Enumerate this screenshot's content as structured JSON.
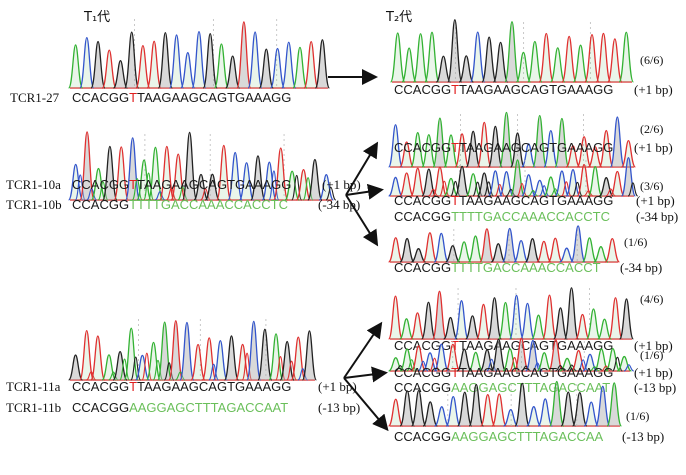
{
  "colors": {
    "A": "#33b233",
    "C": "#3355cc",
    "G": "#222222",
    "T": "#e03030",
    "seq_black": "#1a1a1a",
    "insert_red": "#e02020",
    "deletion_green": "#6abf5a",
    "baseline_red": "#e05050",
    "baseline_black": "#222222"
  },
  "headers": {
    "t1": "T₁代",
    "t2": "T₂代"
  },
  "t1_samples": [
    {
      "id": "tcr1-27",
      "chrom_count": 1,
      "lines": [
        {
          "label": "TCR1-27",
          "prefix": "CCACGG",
          "insert": "T",
          "rest": "TAAGAAGCAGTGAAAGG",
          "restColor": "black",
          "indel": ""
        }
      ]
    },
    {
      "id": "tcr1-10",
      "chrom_count": 1,
      "lines": [
        {
          "label": "TCR1-10a",
          "prefix": "CCACGG",
          "insert": "T",
          "rest": "TAAGAAGCAGTGAAAGG",
          "restColor": "black",
          "indel": "(+1 bp)"
        },
        {
          "label": "TCR1-10b",
          "prefix": "CCACGG",
          "insert": "",
          "rest": "TTTTGACCAAACCACCTC",
          "restColor": "green",
          "indel": "(-34 bp)"
        }
      ]
    },
    {
      "id": "tcr1-11",
      "chrom_count": 1,
      "lines": [
        {
          "label": "TCR1-11a",
          "prefix": "CCACGG",
          "insert": "T",
          "rest": "TAAGAAGCAGTGAAAGG",
          "restColor": "black",
          "indel": "(+1 bp)"
        },
        {
          "label": "TCR1-11b",
          "prefix": "CCACGG",
          "insert": "",
          "rest": "AAGGAGCTTTAGACCAAT",
          "restColor": "green",
          "indel": "(-13 bp)"
        }
      ]
    }
  ],
  "t2_samples": [
    {
      "id": "t2-27",
      "ratio": "(6/6)",
      "lines": [
        {
          "prefix": "CCACGG",
          "insert": "T",
          "rest": "TAAGAAGCAGTGAAAGG",
          "restColor": "black",
          "indel": "(+1 bp)"
        }
      ]
    },
    {
      "id": "t2-10-1",
      "ratio": "(2/6)",
      "lines": [
        {
          "prefix": "CCACGG",
          "insert": "T",
          "rest": "TAAGAAGCAGTGAAAGG",
          "restColor": "black",
          "indel": "(+1 bp)"
        }
      ]
    },
    {
      "id": "t2-10-2",
      "ratio": "(3/6)",
      "lines": [
        {
          "prefix": "CCACGG",
          "insert": "T",
          "rest": "TAAGAAGCAGTGAAAGG",
          "restColor": "black",
          "indel": "(+1 bp)"
        },
        {
          "prefix": "CCACGG",
          "insert": "",
          "rest": "TTTTGACCAAACCACCTC",
          "restColor": "green",
          "indel": "(-34 bp)"
        }
      ]
    },
    {
      "id": "t2-10-3",
      "ratio": "(1/6)",
      "lines": [
        {
          "prefix": "CCACGG",
          "insert": "",
          "rest": "TTTTGACCAAACCACCT",
          "restColor": "green",
          "indel": "(-34 bp)"
        }
      ]
    },
    {
      "id": "t2-11-1",
      "ratio": "(4/6)",
      "lines": [
        {
          "prefix": "CCACGG",
          "insert": "T",
          "rest": "TAAGAAGCAGTGAAAGG",
          "restColor": "black",
          "indel": "(+1 bp)"
        }
      ]
    },
    {
      "id": "t2-11-2",
      "ratio": "(1/6)",
      "lines": [
        {
          "prefix": "CCACGG",
          "insert": "T",
          "rest": "TAAGAAGCAGTGAAAGG",
          "restColor": "black",
          "indel": "(+1 bp)"
        },
        {
          "prefix": "CCACGG",
          "insert": "",
          "rest": "AAGGAGCTTTAGACCAAT",
          "restColor": "green",
          "indel": "(-13 bp)"
        }
      ]
    },
    {
      "id": "t2-11-3",
      "ratio": "(1/6)",
      "lines": [
        {
          "prefix": "CCACGG",
          "insert": "",
          "rest": "AAGGAGCTTTAGACCAA",
          "restColor": "green",
          "indel": "(-13 bp)"
        }
      ]
    }
  ]
}
